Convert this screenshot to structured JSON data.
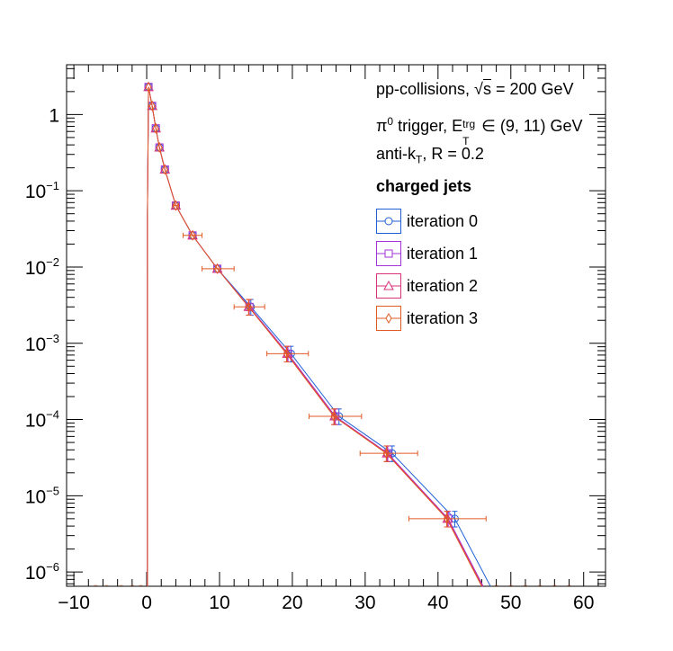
{
  "legend": {
    "line1_pre": "pp-collisions, ",
    "line1_sqrt": "√",
    "line1_s": "s",
    "line1_post": " = 200 GeV",
    "line2_pi": "π",
    "line2_pi_sup": "0",
    "line2_mid": " trigger, E",
    "line2_sup": "trg",
    "line2_sub": "T",
    "line2_post": " ∈ (9, 11) GeV",
    "line3_pre": "anti-k",
    "line3_sub": "T",
    "line3_post": ", R = 0.2",
    "header": "charged jets",
    "entries": [
      "iteration 0",
      "iteration 1",
      "iteration 2",
      "iteration 3"
    ]
  },
  "chart_data": {
    "type": "line",
    "xlim": [
      -11,
      63
    ],
    "ylim": [
      6.5e-07,
      4.5
    ],
    "ylog": true,
    "grid": false,
    "legend_position": "top-right",
    "x_ticks": [
      -10,
      0,
      10,
      20,
      30,
      40,
      50,
      60
    ],
    "x_tick_labels": [
      "−10",
      "0",
      "10",
      "20",
      "30",
      "40",
      "50",
      "60"
    ],
    "y_tick_labels": [
      {
        "base": "1",
        "exp": ""
      },
      {
        "base": "10",
        "exp": "−1"
      },
      {
        "base": "10",
        "exp": "−2"
      },
      {
        "base": "10",
        "exp": "−3"
      },
      {
        "base": "10",
        "exp": "−4"
      },
      {
        "base": "10",
        "exp": "−5"
      },
      {
        "base": "10",
        "exp": "−6"
      }
    ],
    "y_tick_values": [
      1,
      0.1,
      0.01,
      0.001,
      0.0001,
      1e-05,
      1e-06
    ],
    "series": [
      {
        "name": "iteration 0",
        "color": "#1f5fd6",
        "marker": "circle",
        "points": [
          [
            0.25,
            2.3
          ],
          [
            0.75,
            1.3
          ],
          [
            1.25,
            0.66
          ],
          [
            1.75,
            0.37
          ],
          [
            2.5,
            0.19
          ],
          [
            4,
            0.064
          ],
          [
            6.3,
            0.026
          ],
          [
            9.7,
            0.0095
          ],
          [
            14.3,
            0.003
          ],
          [
            19.8,
            0.00073
          ],
          [
            26.4,
            0.00011
          ],
          [
            33.7,
            3.6e-05
          ],
          [
            42.3,
            5e-06
          ]
        ],
        "tail": [
          [
            47.2,
            6.5e-07
          ]
        ]
      },
      {
        "name": "iteration 1",
        "color": "#a333d6",
        "marker": "square",
        "points": [
          [
            0.25,
            2.3
          ],
          [
            0.75,
            1.3
          ],
          [
            1.25,
            0.66
          ],
          [
            1.75,
            0.37
          ],
          [
            2.5,
            0.19
          ],
          [
            4,
            0.064
          ],
          [
            6.3,
            0.026
          ],
          [
            9.7,
            0.0095
          ],
          [
            14.1,
            0.003
          ],
          [
            19.4,
            0.00073
          ],
          [
            25.9,
            0.00011
          ],
          [
            33.1,
            3.6e-05
          ],
          [
            41.4,
            5e-06
          ]
        ],
        "tail": [
          [
            46.2,
            6.5e-07
          ]
        ]
      },
      {
        "name": "iteration 2",
        "color": "#d6337a",
        "marker": "triangle",
        "points": [
          [
            0.25,
            2.3
          ],
          [
            0.75,
            1.3
          ],
          [
            1.25,
            0.66
          ],
          [
            1.75,
            0.37
          ],
          [
            2.5,
            0.19
          ],
          [
            4,
            0.064
          ],
          [
            6.3,
            0.026
          ],
          [
            9.7,
            0.0095
          ],
          [
            14.0,
            0.003
          ],
          [
            19.3,
            0.00073
          ],
          [
            25.8,
            0.00011
          ],
          [
            33.0,
            3.6e-05
          ],
          [
            41.3,
            5e-06
          ]
        ],
        "tail": [
          [
            46.1,
            6.5e-07
          ]
        ]
      },
      {
        "name": "iteration 3",
        "color": "#e05a24",
        "marker": "diamond",
        "points": [
          [
            0.25,
            2.3
          ],
          [
            0.75,
            1.3
          ],
          [
            1.25,
            0.66
          ],
          [
            1.75,
            0.37
          ],
          [
            2.5,
            0.19
          ],
          [
            4,
            0.064
          ],
          [
            6.3,
            0.026
          ],
          [
            9.7,
            0.0095
          ],
          [
            14.0,
            0.003
          ],
          [
            19.2,
            0.00073
          ],
          [
            25.7,
            0.00011
          ],
          [
            32.9,
            3.6e-05
          ],
          [
            41.2,
            5e-06
          ]
        ],
        "tail": [
          [
            46.0,
            6.5e-07
          ]
        ],
        "x_errors": [
          [
            3.6,
            4.4
          ],
          [
            5,
            7.6
          ],
          [
            7.6,
            12
          ],
          [
            12,
            16.2
          ],
          [
            16.5,
            22.2
          ],
          [
            22.3,
            29.5
          ],
          [
            29.3,
            37.2
          ],
          [
            36,
            46.6
          ]
        ]
      }
    ]
  }
}
